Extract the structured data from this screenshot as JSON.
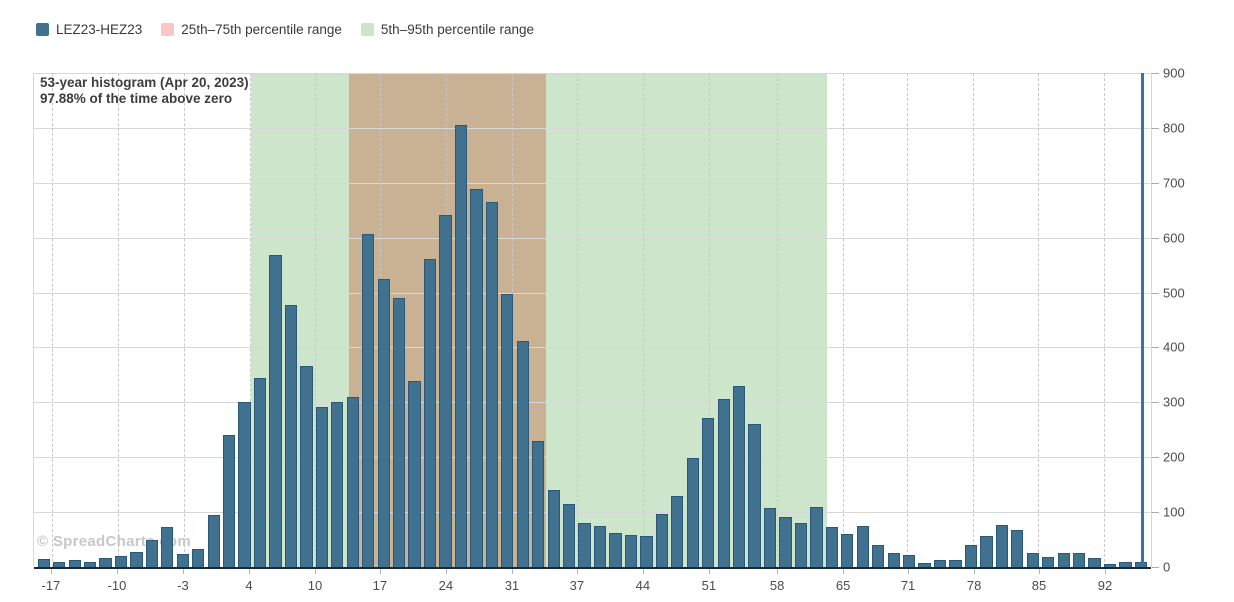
{
  "legend": {
    "items": [
      {
        "label": "LEZ23-HEZ23",
        "color": "#40718f"
      },
      {
        "label": "25th–75th percentile range",
        "color": "#f9c7c5"
      },
      {
        "label": "5th–95th percentile range",
        "color": "#cde5cb"
      }
    ]
  },
  "title": {
    "line1": "53-year histogram (Apr 20, 2023)",
    "line2": "97.88% of the time above zero"
  },
  "watermark": "© SpreadCharts.com",
  "chart_data": {
    "type": "bar",
    "title": "53-year histogram (Apr 20, 2023)",
    "subtitle": "97.88% of the time above zero",
    "series_name": "LEZ23-HEZ23",
    "ylabel": "",
    "xlabel": "",
    "ylim": [
      0,
      900
    ],
    "y_ticks": [
      0,
      100,
      200,
      300,
      400,
      500,
      600,
      700,
      800,
      900
    ],
    "y_axis_side": "right",
    "grid": true,
    "x_tick_labels": [
      "-17",
      "-10",
      "-3",
      "4",
      "10",
      "17",
      "24",
      "31",
      "37",
      "44",
      "51",
      "58",
      "65",
      "71",
      "78",
      "85",
      "92"
    ],
    "values": [
      15,
      9,
      13,
      10,
      16,
      20,
      27,
      49,
      73,
      23,
      32,
      94,
      240,
      301,
      345,
      568,
      477,
      366,
      291,
      300,
      310,
      607,
      525,
      490,
      339,
      562,
      641,
      805,
      689,
      665,
      497,
      412,
      229,
      141,
      115,
      80,
      75,
      62,
      58,
      56,
      97,
      129,
      198,
      271,
      306,
      329,
      261,
      108,
      91,
      80,
      110,
      73,
      60,
      75,
      41,
      26,
      21,
      7,
      12,
      12,
      40,
      56,
      77,
      67,
      26,
      19,
      26,
      26,
      17,
      5,
      9,
      10
    ],
    "regions": [
      {
        "name": "5th–95th percentile range",
        "from": 4,
        "to": 63,
        "display_color": "#cde5cb"
      },
      {
        "name": "25th–75th percentile range",
        "from": 14,
        "to": 34,
        "display_color": "#c9b293"
      }
    ],
    "marker_line": {
      "x": 96,
      "color": "#3a72a8"
    },
    "layout": {
      "bar_color": "#40718f",
      "bar_border_color": "#2a5878",
      "x_tick_pcts": [
        1.6,
        7.5,
        13.4,
        19.3,
        25.2,
        31.0,
        36.9,
        42.8,
        48.6,
        54.5,
        60.4,
        66.5,
        72.4,
        78.2,
        84.1,
        89.9,
        95.8
      ],
      "region_pcts": [
        [
          19.4,
          71.0
        ],
        [
          28.2,
          45.8
        ]
      ],
      "marker_pct": 99.2,
      "grid_h_color": "#d8d8d8",
      "grid_v_color": "#c9c9c9",
      "axis_color": "#1b2838"
    }
  }
}
